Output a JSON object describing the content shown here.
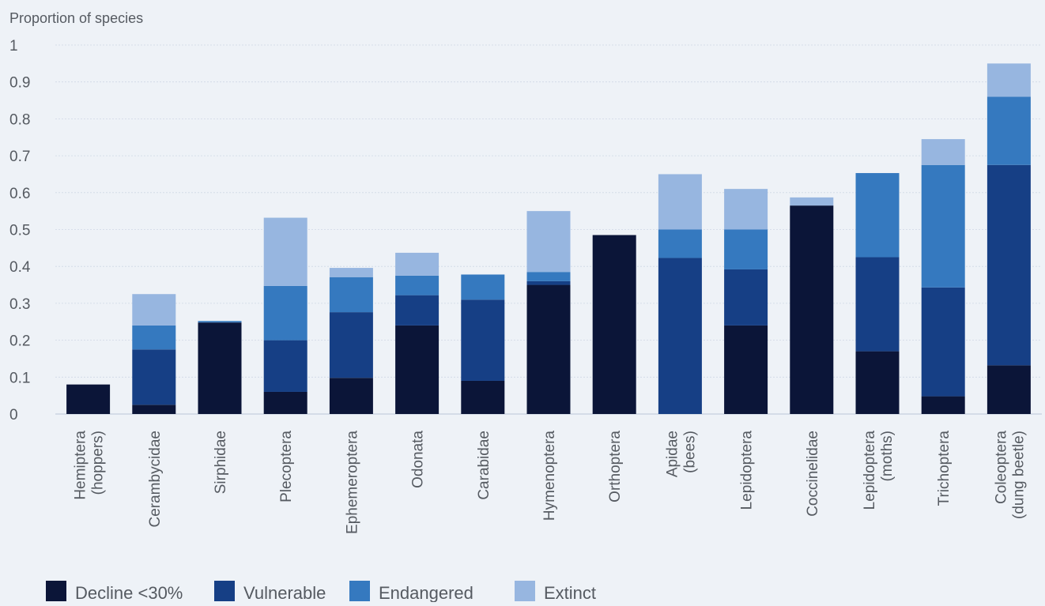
{
  "chart_data": {
    "type": "bar",
    "stacked": true,
    "title": "",
    "xlabel": "",
    "ylabel": "Proportion of species",
    "ylim": [
      0,
      1
    ],
    "yticks": [
      "0",
      "0.1",
      "0.2",
      "0.3",
      "0.4",
      "0.5",
      "0.6",
      "0.7",
      "0.8",
      "0.9",
      "1"
    ],
    "grid": true,
    "legend_position": "bottom-left",
    "categories": [
      [
        "Hemiptera",
        "(hoppers)"
      ],
      [
        "Cerambycidae"
      ],
      [
        "Sirphidae"
      ],
      [
        "Plecoptera"
      ],
      [
        "Ephemeroptera"
      ],
      [
        "Odonata"
      ],
      [
        "Carabidae"
      ],
      [
        "Hymenoptera"
      ],
      [
        "Orthoptera"
      ],
      [
        "Apidae",
        "(bees)"
      ],
      [
        "Lepidoptera"
      ],
      [
        "Coccinelidae"
      ],
      [
        "Lepidoptera",
        "(moths)"
      ],
      [
        "Trichoptera"
      ],
      [
        "Coleoptera",
        "(dung beetle)"
      ]
    ],
    "series": [
      {
        "name": "Decline <30%",
        "color": "#0b1538",
        "values": [
          0.08,
          0.025,
          0.248,
          0.06,
          0.098,
          0.24,
          0.09,
          0.35,
          0.485,
          0,
          0.24,
          0.565,
          0.17,
          0.048,
          0.132
        ]
      },
      {
        "name": "Vulnerable",
        "color": "#163f85",
        "values": [
          0,
          0.15,
          0,
          0.14,
          0.178,
          0.082,
          0.22,
          0.01,
          0,
          0.423,
          0.152,
          0,
          0.255,
          0.295,
          0.543
        ]
      },
      {
        "name": "Endangered",
        "color": "#3579bf",
        "values": [
          0,
          0.065,
          0.004,
          0.147,
          0.095,
          0.053,
          0.068,
          0.025,
          0,
          0.077,
          0.108,
          0,
          0.228,
          0.332,
          0.185
        ]
      },
      {
        "name": "Extinct",
        "color": "#97b6e0",
        "values": [
          0,
          0.085,
          0,
          0.185,
          0.025,
          0.062,
          0,
          0.165,
          0,
          0.15,
          0.11,
          0.022,
          0,
          0.07,
          0.09
        ]
      }
    ]
  },
  "colors": {
    "grid": "#cfd8e6",
    "axis": "#c4cedd",
    "text": "#555a61",
    "background": "#eef2f7"
  }
}
